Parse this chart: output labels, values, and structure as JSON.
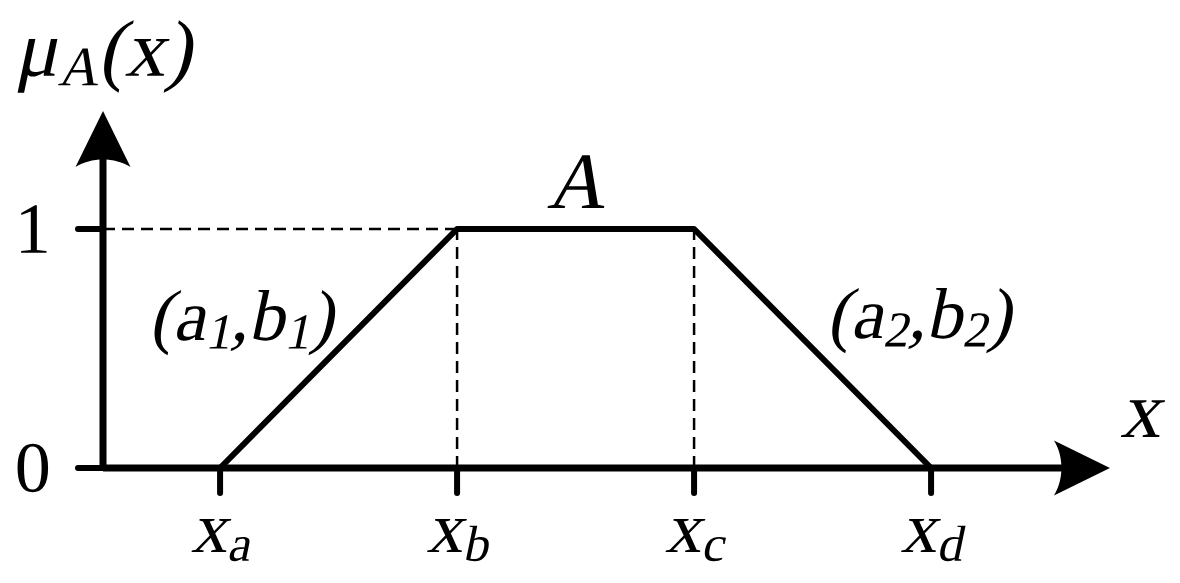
{
  "chart_data": {
    "type": "line",
    "xlabel": "x",
    "ylabel": "μ$_{A}$(x)",
    "categories": [
      "x$_{a}$",
      "x$_{b}$",
      "x$_{c}$",
      "x$_{d}$"
    ],
    "values": [
      0,
      1,
      1,
      0
    ],
    "color": "#000000",
    "ylim": [
      0,
      1.46
    ],
    "yticks": [
      0,
      1
    ],
    "ref_lines": [
      {
        "axis": "y",
        "value": 1,
        "line_style": "dashed"
      },
      {
        "axis": "x",
        "value": "x$_{b}$",
        "line_style": "dashed"
      },
      {
        "axis": "x",
        "value": "x$_{c}$",
        "line_style": "dashed"
      }
    ],
    "annotations": [
      "A",
      "(a$_{1}$,b$_{1}$)",
      "(a$_{2}$,b$_{2}$)"
    ]
  }
}
